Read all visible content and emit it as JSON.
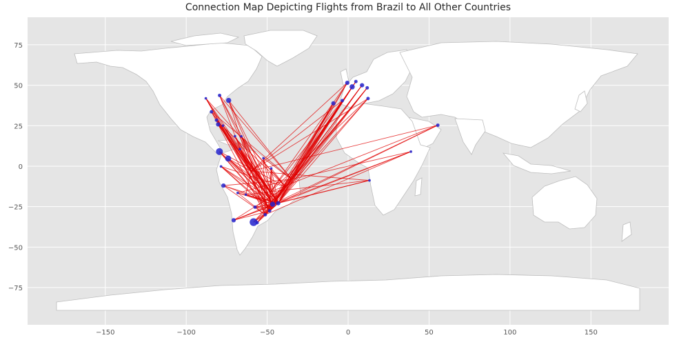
{
  "chart_data": {
    "type": "scatter",
    "title": "Connection Map Depicting Flights from Brazil to All Other Countries",
    "xlabel": "",
    "ylabel": "",
    "xlim": [
      -198,
      198
    ],
    "ylim": [
      -98,
      92
    ],
    "x_ticks": [
      -150,
      -100,
      -50,
      0,
      50,
      100,
      150
    ],
    "x_tick_labels": [
      "−150",
      "−100",
      "−50",
      "0",
      "50",
      "100",
      "150"
    ],
    "y_ticks": [
      75,
      50,
      25,
      0,
      -25,
      -50,
      -75
    ],
    "y_tick_labels": [
      "75",
      "50",
      "25",
      "0",
      "−25",
      "−50",
      "−75"
    ],
    "grid": true,
    "colors": {
      "background": "#e5e5e5",
      "grid": "#ffffff",
      "land": "#ffffff",
      "land_edge": "#bdbdbd",
      "route": "#e00000",
      "marker": "#2222cc"
    },
    "origins": [
      {
        "lon": -46.6,
        "lat": -23.5
      },
      {
        "lon": -43.2,
        "lat": -22.9
      },
      {
        "lon": -48.5,
        "lat": -27.6
      },
      {
        "lon": -51.2,
        "lat": -30.0
      },
      {
        "lon": -47.9,
        "lat": -15.8
      },
      {
        "lon": -38.5,
        "lat": -12.9
      },
      {
        "lon": -34.9,
        "lat": -8.1
      },
      {
        "lon": -60.0,
        "lat": -3.1
      },
      {
        "lon": -49.3,
        "lat": -25.4
      }
    ],
    "destinations": [
      {
        "lon": -58.4,
        "lat": -34.6,
        "size": 9
      },
      {
        "lon": -79.5,
        "lat": 9.0,
        "size": 8
      },
      {
        "lon": -74.1,
        "lat": 4.7,
        "size": 7
      },
      {
        "lon": -73.8,
        "lat": 40.6,
        "size": 6
      },
      {
        "lon": 2.5,
        "lat": 49.0,
        "size": 6
      },
      {
        "lon": -80.3,
        "lat": 25.8,
        "size": 5
      },
      {
        "lon": -77.0,
        "lat": -12.0,
        "size": 5
      },
      {
        "lon": -70.7,
        "lat": -33.4,
        "size": 5
      },
      {
        "lon": -0.5,
        "lat": 51.5,
        "size": 5
      },
      {
        "lon": 8.6,
        "lat": 50.0,
        "size": 5
      },
      {
        "lon": -9.1,
        "lat": 38.8,
        "size": 5
      },
      {
        "lon": -3.6,
        "lat": 40.5,
        "size": 4
      },
      {
        "lon": 4.8,
        "lat": 52.3,
        "size": 4
      },
      {
        "lon": 11.8,
        "lat": 48.4,
        "size": 4
      },
      {
        "lon": 12.3,
        "lat": 41.8,
        "size": 4
      },
      {
        "lon": -84.4,
        "lat": 33.6,
        "size": 4
      },
      {
        "lon": -81.3,
        "lat": 28.4,
        "size": 4
      },
      {
        "lon": 55.4,
        "lat": 25.3,
        "size": 4
      },
      {
        "lon": -79.4,
        "lat": 43.7,
        "size": 4
      },
      {
        "lon": -66.0,
        "lat": 18.4,
        "size": 3
      },
      {
        "lon": -69.9,
        "lat": 18.5,
        "size": 3
      },
      {
        "lon": -56.2,
        "lat": -34.9,
        "size": 4
      },
      {
        "lon": -57.5,
        "lat": -25.3,
        "size": 4
      },
      {
        "lon": -63.2,
        "lat": -17.6,
        "size": 3
      },
      {
        "lon": -68.2,
        "lat": -16.5,
        "size": 3
      },
      {
        "lon": -78.5,
        "lat": -0.2,
        "size": 3
      },
      {
        "lon": -66.9,
        "lat": 10.5,
        "size": 3
      },
      {
        "lon": -52.3,
        "lat": 4.9,
        "size": 3
      },
      {
        "lon": -47.5,
        "lat": -1.4,
        "size": 3
      },
      {
        "lon": 13.2,
        "lat": -8.8,
        "size": 3
      },
      {
        "lon": 38.8,
        "lat": 9.0,
        "size": 3
      },
      {
        "lon": -87.9,
        "lat": 41.9,
        "size": 3
      },
      {
        "lon": -77.3,
        "lat": 25.0,
        "size": 3
      },
      {
        "lon": -46.6,
        "lat": -23.5,
        "size": 6
      },
      {
        "lon": -43.2,
        "lat": -22.9,
        "size": 5
      },
      {
        "lon": -48.5,
        "lat": -27.6,
        "size": 4
      },
      {
        "lon": -51.2,
        "lat": -30.0,
        "size": 4
      }
    ]
  }
}
